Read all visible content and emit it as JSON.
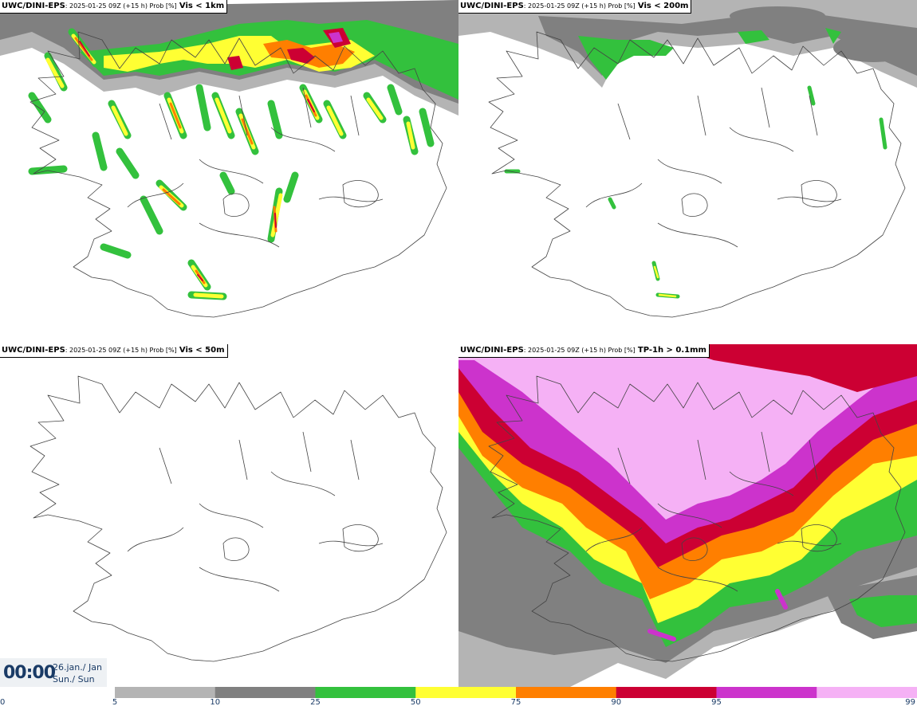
{
  "panels": [
    {
      "model": "UWC/DINI-EPS",
      "meta": ": 2025-01-25 09Z (+15 h) Prob [%]",
      "param": "Vis < 1km"
    },
    {
      "model": "UWC/DINI-EPS",
      "meta": ": 2025-01-25 09Z (+15 h) Prob [%]",
      "param": "Vis < 200m"
    },
    {
      "model": "UWC/DINI-EPS",
      "meta": ": 2025-01-25 09Z (+15 h) Prob [%]",
      "param": "Vis < 50m"
    },
    {
      "model": "UWC/DINI-EPS",
      "meta": ": 2025-01-25 09Z (+15 h) Prob [%]",
      "param": "TP-1h > 0.1mm"
    }
  ],
  "valid_time": {
    "clock": "00:00",
    "date_line": "26.jan./ Jan",
    "day_line": "Sun./ Sun"
  },
  "legend": {
    "ticks": [
      "0",
      "5",
      "10",
      "25",
      "50",
      "75",
      "90",
      "95",
      "99"
    ],
    "colors": [
      "#b4b4b4",
      "#808080",
      "#33c13d",
      "#ffff33",
      "#ff7f00",
      "#cc0033",
      "#cc33cc",
      "#f5b1f5"
    ]
  }
}
